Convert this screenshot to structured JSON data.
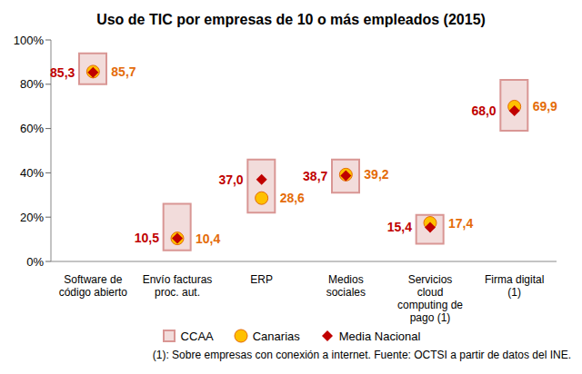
{
  "chart_data": {
    "type": "range",
    "title": "Uso de TIC por empresas de 10 o más empleados (2015)",
    "categories": [
      "Software de código abierto",
      "Envío facturas proc. aut.",
      "ERP",
      "Medios sociales",
      "Servicios cloud computing de pago (1)",
      "Firma digital (1)"
    ],
    "series": [
      {
        "name": "CCAA",
        "type": "range",
        "marker": "square",
        "color": "#f2dcdb",
        "values": [
          [
            80,
            94
          ],
          [
            5,
            26
          ],
          [
            22,
            46
          ],
          [
            31,
            46
          ],
          [
            8,
            21
          ],
          [
            59,
            82
          ]
        ]
      },
      {
        "name": "Canarias",
        "type": "scatter",
        "marker": "circle",
        "color": "#ffc000",
        "values": [
          85.7,
          10.4,
          28.6,
          39.2,
          17.4,
          69.9
        ],
        "value_labels": [
          "85,7",
          "10,4",
          "28,6",
          "39,2",
          "17,4",
          "69,9"
        ]
      },
      {
        "name": "Media Nacional",
        "type": "scatter",
        "marker": "diamond",
        "color": "#c00000",
        "values": [
          85.3,
          10.5,
          37.0,
          38.7,
          15.4,
          68.0
        ],
        "value_labels": [
          "85,3",
          "10,5",
          "37,0",
          "38,7",
          "15,4",
          "68,0"
        ]
      }
    ],
    "ylim": [
      0,
      100
    ],
    "yticks": [
      {
        "value": 0,
        "label": "0%"
      },
      {
        "value": 20,
        "label": "20%"
      },
      {
        "value": 40,
        "label": "40%"
      },
      {
        "value": 60,
        "label": "60%"
      },
      {
        "value": 80,
        "label": "80%"
      },
      {
        "value": 100,
        "label": "100%"
      }
    ],
    "grid": false,
    "legend": "bottom",
    "data_labels": true,
    "annotations": [
      "(1): Sobre empresas con conexión a internet. Fuente: OCTSI a partir de datos del INE."
    ]
  }
}
